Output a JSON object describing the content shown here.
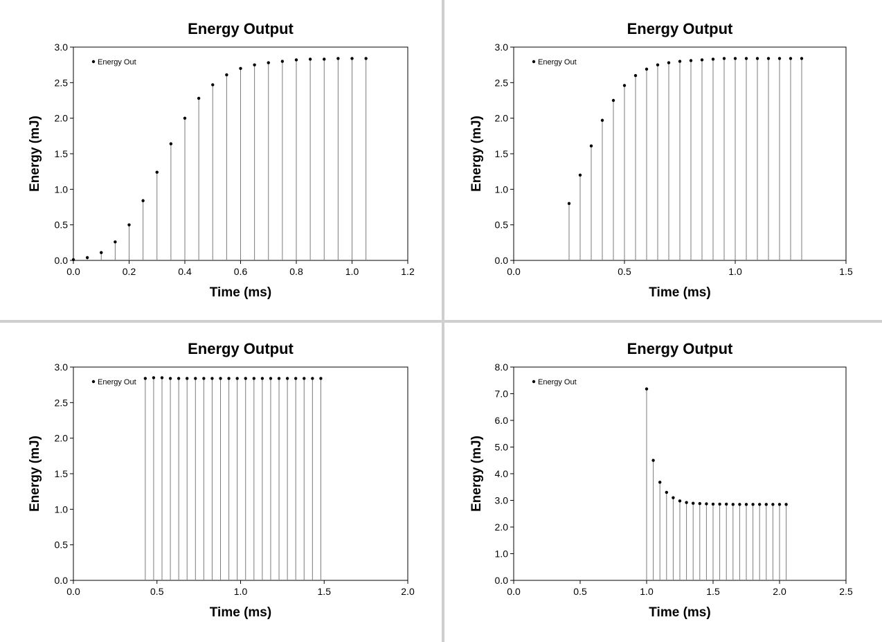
{
  "chart_data": [
    {
      "type": "scatter",
      "style": "drop-lines",
      "title": "Energy Output",
      "xlabel": "Time (ms)",
      "ylabel": "Energy (mJ)",
      "xlim": [
        0,
        1.2
      ],
      "ylim": [
        0,
        3.0
      ],
      "xticks": [
        "0.0",
        "0.2",
        "0.4",
        "0.6",
        "0.8",
        "1.0",
        "1.2"
      ],
      "yticks": [
        "0.0",
        "0.5",
        "1.0",
        "1.5",
        "2.0",
        "2.5",
        "3.0"
      ],
      "legend": "top-left",
      "series": [
        {
          "name": "Energy Out",
          "x": [
            0.0,
            0.05,
            0.1,
            0.15,
            0.2,
            0.25,
            0.3,
            0.35,
            0.4,
            0.45,
            0.5,
            0.55,
            0.6,
            0.65,
            0.7,
            0.75,
            0.8,
            0.85,
            0.9,
            0.95,
            1.0,
            1.05
          ],
          "y": [
            0.01,
            0.04,
            0.11,
            0.26,
            0.5,
            0.84,
            1.24,
            1.64,
            2.0,
            2.28,
            2.47,
            2.61,
            2.7,
            2.75,
            2.78,
            2.8,
            2.82,
            2.83,
            2.83,
            2.84,
            2.84,
            2.84
          ]
        }
      ]
    },
    {
      "type": "scatter",
      "style": "drop-lines",
      "title": "Energy Output",
      "xlabel": "Time (ms)",
      "ylabel": "Energy (mJ)",
      "xlim": [
        0,
        1.5
      ],
      "ylim": [
        0,
        3.0
      ],
      "xticks": [
        "0.0",
        "0.5",
        "1.0",
        "1.5"
      ],
      "yticks": [
        "0.0",
        "0.5",
        "1.0",
        "1.5",
        "2.0",
        "2.5",
        "3.0"
      ],
      "legend": "top-left",
      "series": [
        {
          "name": "Energy Out",
          "x": [
            0.25,
            0.3,
            0.35,
            0.4,
            0.45,
            0.5,
            0.55,
            0.6,
            0.65,
            0.7,
            0.75,
            0.8,
            0.85,
            0.9,
            0.95,
            1.0,
            1.05,
            1.1,
            1.15,
            1.2,
            1.25,
            1.3
          ],
          "y": [
            0.8,
            1.2,
            1.61,
            1.97,
            2.25,
            2.46,
            2.6,
            2.69,
            2.75,
            2.78,
            2.8,
            2.81,
            2.82,
            2.83,
            2.84,
            2.84,
            2.84,
            2.84,
            2.84,
            2.84,
            2.84,
            2.84
          ]
        }
      ]
    },
    {
      "type": "scatter",
      "style": "drop-lines",
      "title": "Energy Output",
      "xlabel": "Time (ms)",
      "ylabel": "Energy (mJ)",
      "xlim": [
        0,
        2.0
      ],
      "ylim": [
        0,
        3.0
      ],
      "xticks": [
        "0.0",
        "0.5",
        "1.0",
        "1.5",
        "2.0"
      ],
      "yticks": [
        "0.0",
        "0.5",
        "1.0",
        "1.5",
        "2.0",
        "2.5",
        "3.0"
      ],
      "legend": "top-left",
      "series": [
        {
          "name": "Energy Out",
          "x": [
            0.43,
            0.48,
            0.53,
            0.58,
            0.63,
            0.68,
            0.73,
            0.78,
            0.83,
            0.88,
            0.93,
            0.98,
            1.03,
            1.08,
            1.13,
            1.18,
            1.23,
            1.28,
            1.33,
            1.38,
            1.43,
            1.48
          ],
          "y": [
            2.84,
            2.85,
            2.85,
            2.84,
            2.84,
            2.84,
            2.84,
            2.84,
            2.84,
            2.84,
            2.84,
            2.84,
            2.84,
            2.84,
            2.84,
            2.84,
            2.84,
            2.84,
            2.84,
            2.84,
            2.84,
            2.84
          ]
        }
      ]
    },
    {
      "type": "scatter",
      "style": "drop-lines",
      "title": "Energy Output",
      "xlabel": "Time (ms)",
      "ylabel": "Energy (mJ)",
      "xlim": [
        0,
        2.5
      ],
      "ylim": [
        0,
        8.0
      ],
      "xticks": [
        "0.0",
        "0.5",
        "1.0",
        "1.5",
        "2.0",
        "2.5"
      ],
      "yticks": [
        "0.0",
        "1.0",
        "2.0",
        "3.0",
        "4.0",
        "5.0",
        "6.0",
        "7.0",
        "8.0"
      ],
      "legend": "top-left",
      "series": [
        {
          "name": "Energy Out",
          "x": [
            1.0,
            1.05,
            1.1,
            1.15,
            1.2,
            1.25,
            1.3,
            1.35,
            1.4,
            1.45,
            1.5,
            1.55,
            1.6,
            1.65,
            1.7,
            1.75,
            1.8,
            1.85,
            1.9,
            1.95,
            2.0,
            2.05
          ],
          "y": [
            7.18,
            4.5,
            3.68,
            3.3,
            3.1,
            2.98,
            2.92,
            2.89,
            2.88,
            2.87,
            2.86,
            2.86,
            2.86,
            2.85,
            2.85,
            2.85,
            2.85,
            2.85,
            2.85,
            2.85,
            2.85,
            2.85
          ]
        }
      ]
    }
  ]
}
